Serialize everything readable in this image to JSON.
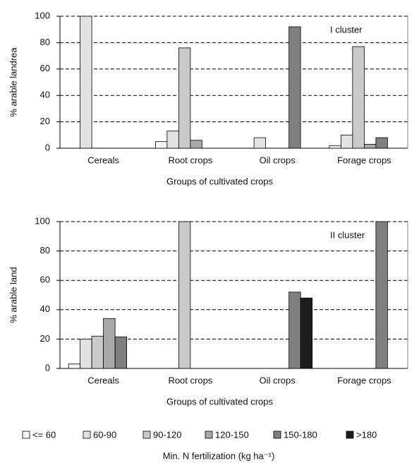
{
  "chart_data": [
    {
      "type": "bar",
      "annotation": "I cluster",
      "y_label": "% arable landrea",
      "x_label": "Groups of cultivated crops",
      "categories": [
        "Cereals",
        "Root crops",
        "Oil crops",
        "Forage crops"
      ],
      "series": [
        {
          "name": "<= 60",
          "color": "#f4f4f4",
          "values": [
            0,
            5,
            0,
            2
          ]
        },
        {
          "name": "60-90",
          "color": "#e2e2e2",
          "values": [
            100,
            13,
            8,
            10
          ]
        },
        {
          "name": "90-120",
          "color": "#cacaca",
          "values": [
            0,
            76,
            0,
            77
          ]
        },
        {
          "name": "120-150",
          "color": "#a9a9a9",
          "values": [
            0,
            6,
            0,
            3
          ]
        },
        {
          "name": "150-180",
          "color": "#7f7f7f",
          "values": [
            0,
            0,
            92,
            8
          ]
        },
        {
          "name": ">180",
          "color": "#1c1c1c",
          "values": [
            0,
            0,
            0,
            0
          ]
        }
      ],
      "ylim": [
        0,
        100
      ],
      "yticks": [
        0,
        20,
        40,
        60,
        80,
        100
      ],
      "grid": true,
      "legend_title": "Min. N fertilization (kg ha⁻¹)"
    },
    {
      "type": "bar",
      "annotation": "II cluster",
      "y_label": "% arable land",
      "x_label": "Groups of cultivated crops",
      "categories": [
        "Cereals",
        "Root crops",
        "Oil crops",
        "Forage crops"
      ],
      "series": [
        {
          "name": "<= 60",
          "color": "#f4f4f4",
          "values": [
            3,
            0,
            0,
            0
          ]
        },
        {
          "name": "60-90",
          "color": "#e2e2e2",
          "values": [
            20,
            0,
            0,
            0
          ]
        },
        {
          "name": "90-120",
          "color": "#cacaca",
          "values": [
            22,
            100,
            0,
            0
          ]
        },
        {
          "name": "120-150",
          "color": "#a9a9a9",
          "values": [
            34,
            0,
            0,
            0
          ]
        },
        {
          "name": "150-180",
          "color": "#7f7f7f",
          "values": [
            21.5,
            0,
            52,
            100
          ]
        },
        {
          "name": ">180",
          "color": "#1c1c1c",
          "values": [
            0,
            0,
            48,
            0
          ]
        }
      ],
      "ylim": [
        0,
        100
      ],
      "yticks": [
        0,
        20,
        40,
        60,
        80,
        100
      ],
      "grid": true
    }
  ]
}
